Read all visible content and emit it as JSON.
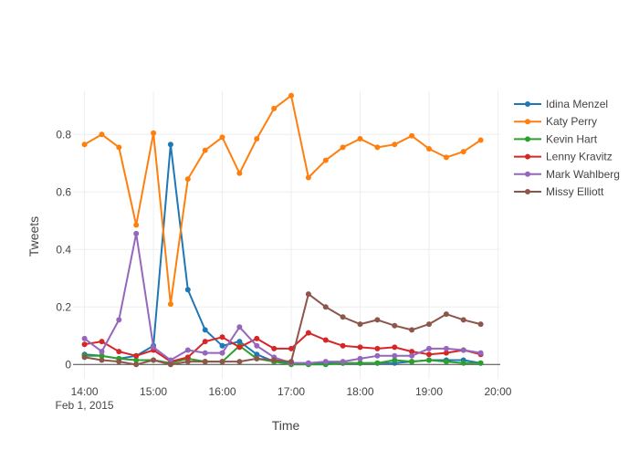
{
  "chart_data": {
    "type": "line",
    "title": "",
    "xlabel": "Time",
    "ylabel": "Tweets",
    "x_axis": {
      "min_minutes": -10,
      "max_minutes": 362,
      "ticks": [
        {
          "minutes": 0,
          "label": "14:00",
          "sublabel": "Feb 1, 2015"
        },
        {
          "minutes": 60,
          "label": "15:00",
          "sublabel": ""
        },
        {
          "minutes": 120,
          "label": "16:00",
          "sublabel": ""
        },
        {
          "minutes": 180,
          "label": "17:00",
          "sublabel": ""
        },
        {
          "minutes": 240,
          "label": "18:00",
          "sublabel": ""
        },
        {
          "minutes": 300,
          "label": "19:00",
          "sublabel": ""
        },
        {
          "minutes": 360,
          "label": "20:00",
          "sublabel": ""
        }
      ]
    },
    "y_axis": {
      "min": -0.05,
      "max": 0.95,
      "ticks": [
        {
          "value": 0,
          "label": "0"
        },
        {
          "value": 0.2,
          "label": "0.2"
        },
        {
          "value": 0.4,
          "label": "0.4"
        },
        {
          "value": 0.6,
          "label": "0.6"
        },
        {
          "value": 0.8,
          "label": "0.8"
        }
      ]
    },
    "grid": true,
    "legend_position": "right",
    "x": [
      "14:00",
      "14:15",
      "14:30",
      "14:45",
      "15:00",
      "15:15",
      "15:30",
      "15:45",
      "16:00",
      "16:15",
      "16:30",
      "16:45",
      "17:00",
      "17:15",
      "17:30",
      "17:45",
      "18:00",
      "18:15",
      "18:30",
      "18:45",
      "19:00",
      "19:15",
      "19:30",
      "19:45"
    ],
    "series": [
      {
        "name": "Idina Menzel",
        "color": "#1f77b4",
        "values": [
          0.035,
          0.03,
          0.02,
          0.03,
          0.065,
          0.765,
          0.26,
          0.12,
          0.065,
          0.08,
          0.035,
          0.01,
          0.005,
          0.005,
          0.005,
          0.005,
          0.005,
          0.005,
          0.005,
          0.01,
          0.015,
          0.015,
          0.015,
          0.005
        ]
      },
      {
        "name": "Katy Perry",
        "color": "#ff7f0e",
        "values": [
          0.765,
          0.8,
          0.755,
          0.485,
          0.805,
          0.21,
          0.645,
          0.745,
          0.79,
          0.665,
          0.785,
          0.89,
          0.935,
          0.65,
          0.71,
          0.755,
          0.785,
          0.755,
          0.765,
          0.795,
          0.75,
          0.72,
          0.74,
          0.78
        ]
      },
      {
        "name": "Kevin Hart",
        "color": "#2ca02c",
        "values": [
          0.03,
          0.03,
          0.02,
          0.015,
          0.015,
          0.005,
          0.02,
          0.01,
          0.01,
          0.065,
          0.02,
          0.01,
          0.0,
          0.0,
          0.0,
          0.005,
          0.005,
          0.005,
          0.015,
          0.01,
          0.015,
          0.01,
          0.005,
          0.005
        ]
      },
      {
        "name": "Lenny Kravitz",
        "color": "#d62728",
        "values": [
          0.07,
          0.08,
          0.045,
          0.03,
          0.05,
          0.01,
          0.025,
          0.08,
          0.095,
          0.06,
          0.09,
          0.055,
          0.055,
          0.11,
          0.085,
          0.065,
          0.06,
          0.055,
          0.06,
          0.045,
          0.035,
          0.04,
          0.05,
          0.035
        ]
      },
      {
        "name": "Mark Wahlberg",
        "color": "#9467bd",
        "values": [
          0.09,
          0.045,
          0.155,
          0.455,
          0.06,
          0.015,
          0.05,
          0.04,
          0.04,
          0.13,
          0.065,
          0.025,
          0.005,
          0.005,
          0.01,
          0.01,
          0.02,
          0.03,
          0.03,
          0.03,
          0.055,
          0.055,
          0.05,
          0.04
        ]
      },
      {
        "name": "Missy Elliott",
        "color": "#8c564b",
        "values": [
          0.025,
          0.015,
          0.01,
          0.0,
          0.015,
          0.0,
          0.01,
          0.01,
          0.01,
          0.01,
          0.02,
          0.015,
          0.01,
          0.245,
          0.2,
          0.165,
          0.14,
          0.155,
          0.135,
          0.12,
          0.14,
          0.175,
          0.155,
          0.14
        ]
      }
    ]
  }
}
